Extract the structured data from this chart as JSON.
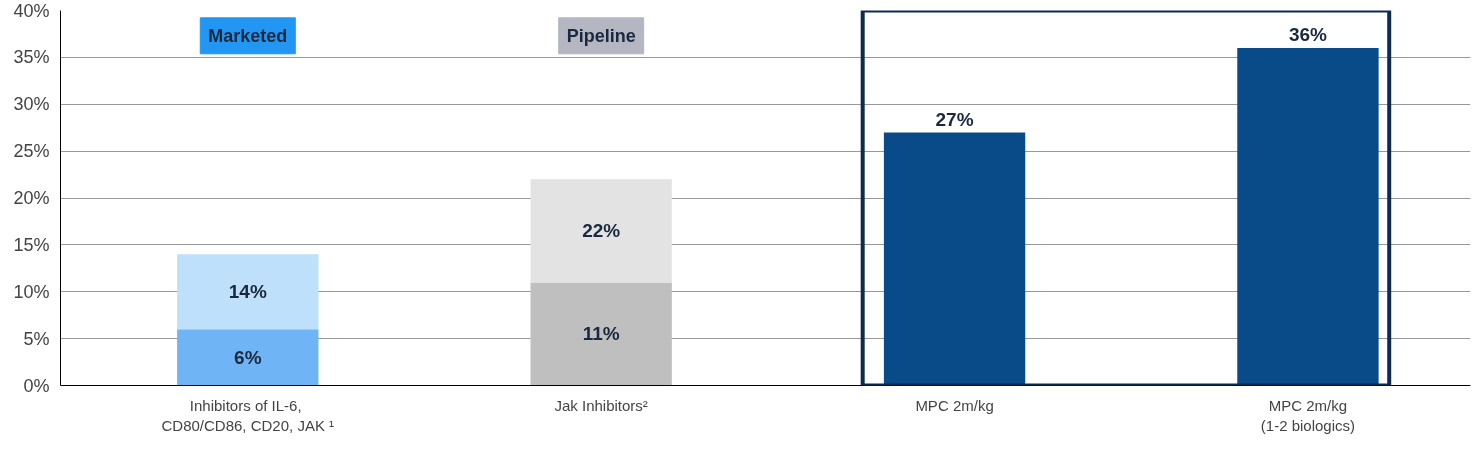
{
  "chart_data": {
    "type": "bar",
    "stacked": true,
    "categories": [
      "Inhibitors  of IL-6,\nCD80/CD86, CD20, JAK ¹",
      "Jak Inhibitors²",
      "MPC 2m/kg",
      "MPC 2m/kg\n(1-2 biologics)"
    ],
    "series": [
      {
        "colors": [
          "#6fb4f4",
          "#bfbfbf",
          "#084b88",
          "#084b88"
        ],
        "values": [
          6,
          11,
          27,
          36
        ],
        "value_labels": [
          "6%",
          "11%",
          "27%",
          "36%"
        ]
      },
      {
        "colors": [
          "#bfe0fb",
          "#e3e3e3",
          null,
          null
        ],
        "values": [
          8,
          11,
          null,
          null
        ]
      }
    ],
    "totals": [
      "14%",
      "22%",
      null,
      null
    ],
    "ylim": [
      0,
      40
    ],
    "yticks": [
      {
        "value": 0,
        "label": "0%"
      },
      {
        "value": 5,
        "label": "5%"
      },
      {
        "value": 10,
        "label": "10%"
      },
      {
        "value": 15,
        "label": "15%"
      },
      {
        "value": 20,
        "label": "20%"
      },
      {
        "value": 25,
        "label": "25%"
      },
      {
        "value": 30,
        "label": "30%"
      },
      {
        "value": 35,
        "label": "35%"
      },
      {
        "value": 40,
        "label": "40%"
      }
    ],
    "grid": "y",
    "annotations": [
      "Marketed",
      "Pipeline"
    ]
  }
}
